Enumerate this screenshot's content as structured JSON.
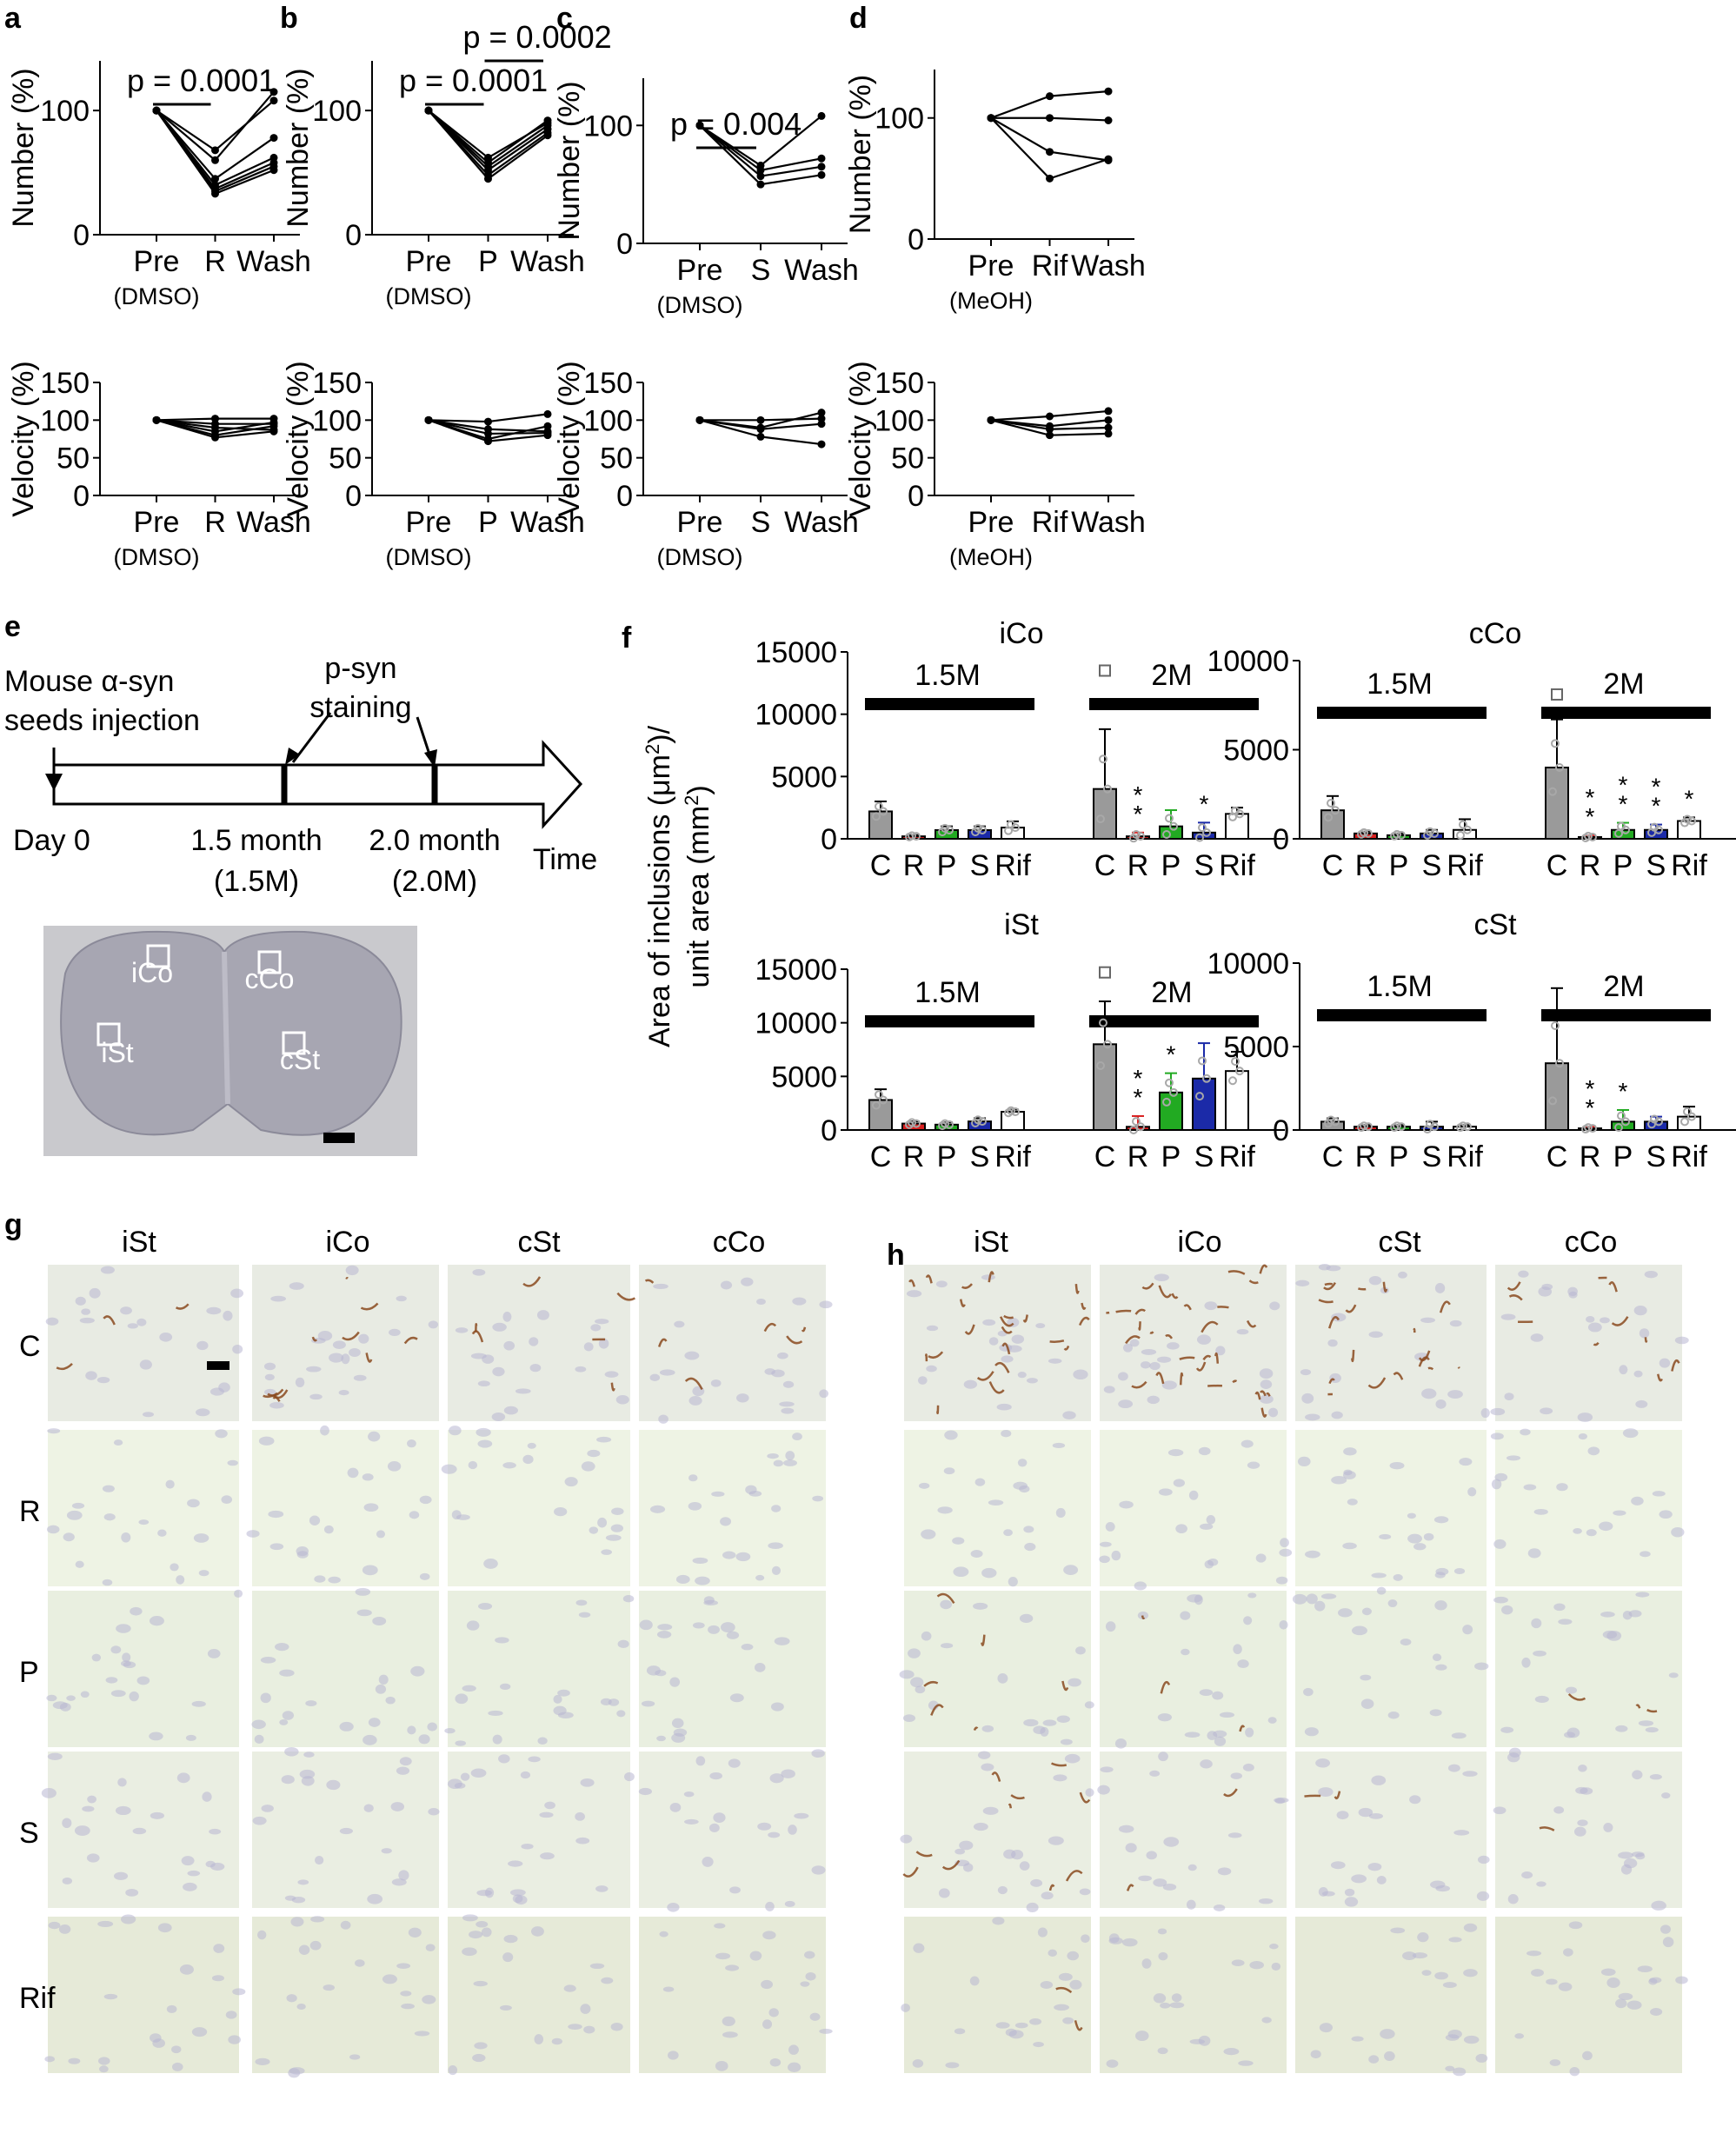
{
  "panel_letters": [
    "a",
    "b",
    "c",
    "d",
    "e",
    "f",
    "g",
    "h"
  ],
  "colors": {
    "control_gray": "#9a9a9a",
    "rifampicin_white": "#ffffff",
    "resveratrol_red": "#d92020",
    "phenolic_green": "#22aa22",
    "s_blue": "#1b2aa8",
    "marker_gray": "#a8a8a8",
    "brain_section": "#a7a6b2",
    "tissue_background": "#eef2e6",
    "stain_brown": "#8a4a1e",
    "nucleus_purple": "#b8b6d2"
  },
  "chart_data": [
    {
      "panel": "a",
      "type": "line",
      "ylabel": "Number (%)",
      "ylim": [
        0,
        140
      ],
      "yticks": [
        0,
        100
      ],
      "x_labels": [
        "Pre",
        "R",
        "Wash"
      ],
      "x_sublabel": "(DMSO)",
      "annotations": [
        {
          "text": "p = 0.0001",
          "from": "Pre",
          "to": "R"
        }
      ],
      "series": [
        {
          "values": [
            100,
            68,
            108
          ]
        },
        {
          "values": [
            100,
            60,
            115
          ]
        },
        {
          "values": [
            100,
            45,
            78
          ]
        },
        {
          "values": [
            100,
            40,
            62
          ]
        },
        {
          "values": [
            100,
            37,
            58
          ]
        },
        {
          "values": [
            100,
            35,
            55
          ]
        },
        {
          "values": [
            100,
            33,
            52
          ]
        }
      ]
    },
    {
      "panel": "a",
      "type": "line",
      "ylabel": "Velocity (%)",
      "ylim": [
        0,
        150
      ],
      "yticks": [
        0,
        50,
        100,
        150
      ],
      "x_labels": [
        "Pre",
        "R",
        "Wash"
      ],
      "x_sublabel": "(DMSO)",
      "series": [
        {
          "values": [
            100,
            102,
            102
          ]
        },
        {
          "values": [
            100,
            95,
            95
          ]
        },
        {
          "values": [
            100,
            90,
            87
          ]
        },
        {
          "values": [
            100,
            85,
            97
          ]
        },
        {
          "values": [
            100,
            80,
            92
          ]
        },
        {
          "values": [
            100,
            77,
            85
          ]
        }
      ]
    },
    {
      "panel": "b",
      "type": "line",
      "ylabel": "Number (%)",
      "ylim": [
        0,
        140
      ],
      "yticks": [
        0,
        100
      ],
      "x_labels": [
        "Pre",
        "P",
        "Wash"
      ],
      "x_sublabel": "(DMSO)",
      "annotations": [
        {
          "text": "p = 0.0001",
          "from": "Pre",
          "to": "P"
        },
        {
          "text": "p = 0.0002",
          "from": "P",
          "to": "Wash"
        }
      ],
      "series": [
        {
          "values": [
            100,
            62,
            90
          ]
        },
        {
          "values": [
            100,
            58,
            92
          ]
        },
        {
          "values": [
            100,
            55,
            88
          ]
        },
        {
          "values": [
            100,
            52,
            85
          ]
        },
        {
          "values": [
            100,
            48,
            82
          ]
        },
        {
          "values": [
            100,
            45,
            80
          ]
        }
      ]
    },
    {
      "panel": "b",
      "type": "line",
      "ylabel": "Velocity (%)",
      "ylim": [
        0,
        150
      ],
      "yticks": [
        0,
        50,
        100,
        150
      ],
      "x_labels": [
        "Pre",
        "P",
        "Wash"
      ],
      "x_sublabel": "(DMSO)",
      "series": [
        {
          "values": [
            100,
            98,
            108
          ]
        },
        {
          "values": [
            100,
            88,
            85
          ]
        },
        {
          "values": [
            100,
            82,
            83
          ]
        },
        {
          "values": [
            100,
            75,
            92
          ]
        },
        {
          "values": [
            100,
            72,
            80
          ]
        }
      ]
    },
    {
      "panel": "c",
      "type": "line",
      "ylabel": "Number (%)",
      "ylim": [
        0,
        140
      ],
      "yticks": [
        0,
        100
      ],
      "x_labels": [
        "Pre",
        "S",
        "Wash"
      ],
      "x_sublabel": "(DMSO)",
      "annotations": [
        {
          "text": "p = 0.004",
          "from": "Pre",
          "to": "S"
        }
      ],
      "series": [
        {
          "values": [
            100,
            66,
            108
          ]
        },
        {
          "values": [
            100,
            62,
            72
          ]
        },
        {
          "values": [
            100,
            57,
            65
          ]
        },
        {
          "values": [
            100,
            50,
            58
          ]
        }
      ]
    },
    {
      "panel": "c",
      "type": "line",
      "ylabel": "Velocity (%)",
      "ylim": [
        0,
        150
      ],
      "yticks": [
        0,
        50,
        100,
        150
      ],
      "x_labels": [
        "Pre",
        "S",
        "Wash"
      ],
      "x_sublabel": "(DMSO)",
      "series": [
        {
          "values": [
            100,
            100,
            102
          ]
        },
        {
          "values": [
            100,
            90,
            110
          ]
        },
        {
          "values": [
            100,
            88,
            95
          ]
        },
        {
          "values": [
            100,
            78,
            68
          ]
        }
      ]
    },
    {
      "panel": "d",
      "type": "line",
      "ylabel": "Number (%)",
      "ylim": [
        0,
        140
      ],
      "yticks": [
        0,
        100
      ],
      "x_labels": [
        "Pre",
        "Rif",
        "Wash"
      ],
      "x_sublabel": "(MeOH)",
      "series": [
        {
          "values": [
            100,
            118,
            122
          ]
        },
        {
          "values": [
            100,
            100,
            98
          ]
        },
        {
          "values": [
            100,
            72,
            65
          ]
        },
        {
          "values": [
            100,
            50,
            66
          ]
        }
      ]
    },
    {
      "panel": "d",
      "type": "line",
      "ylabel": "Velocity (%)",
      "ylim": [
        0,
        150
      ],
      "yticks": [
        0,
        50,
        100,
        150
      ],
      "x_labels": [
        "Pre",
        "Rif",
        "Wash"
      ],
      "x_sublabel": "(MeOH)",
      "series": [
        {
          "values": [
            100,
            105,
            112
          ]
        },
        {
          "values": [
            100,
            92,
            100
          ]
        },
        {
          "values": [
            100,
            88,
            90
          ]
        },
        {
          "values": [
            100,
            80,
            82
          ]
        }
      ]
    },
    {
      "panel": "f",
      "type": "bar",
      "region": "iCo",
      "ylim": [
        0,
        15000
      ],
      "yticks": [
        0,
        5000,
        10000,
        15000
      ],
      "group_labels": [
        "1.5M",
        "2M"
      ],
      "categories": [
        "C",
        "R",
        "P",
        "S",
        "Rif"
      ],
      "groups": [
        {
          "means": [
            2200,
            200,
            700,
            700,
            900
          ],
          "sd": [
            800,
            100,
            300,
            300,
            500
          ]
        },
        {
          "means": [
            4000,
            200,
            1000,
            500,
            2000
          ],
          "sd": [
            4800,
            300,
            1300,
            800,
            500
          ],
          "stars": [
            0,
            2,
            0,
            1,
            0
          ]
        }
      ],
      "outlier_marks": [
        {
          "group": 1,
          "bar": 0,
          "value": 13500
        }
      ]
    },
    {
      "panel": "f",
      "type": "bar",
      "region": "cCo",
      "ylim": [
        0,
        10000
      ],
      "yticks": [
        0,
        5000,
        10000
      ],
      "group_labels": [
        "1.5M",
        "2M"
      ],
      "categories_15M": [
        "C",
        "R",
        "P",
        "S",
        "Rif"
      ],
      "categories_2M": [
        "C",
        "R",
        "P",
        "S",
        "Rif"
      ],
      "groups": [
        {
          "means": [
            1600,
            300,
            200,
            300,
            500
          ],
          "sd": [
            800,
            100,
            100,
            200,
            600
          ]
        },
        {
          "means": [
            4000,
            100,
            500,
            500,
            1000
          ],
          "sd": [
            2700,
            100,
            400,
            300,
            200
          ],
          "stars": [
            0,
            2,
            2,
            2,
            1
          ]
        }
      ],
      "outlier_marks": [
        {
          "group": 1,
          "bar": 0,
          "value": 8100
        }
      ]
    },
    {
      "panel": "f",
      "type": "bar",
      "region": "iSt",
      "ylim": [
        0,
        15000
      ],
      "yticks": [
        0,
        5000,
        10000,
        15000
      ],
      "group_labels": [
        "1.5M",
        "2M"
      ],
      "categories": [
        "C",
        "R",
        "P",
        "S",
        "Rif"
      ],
      "groups": [
        {
          "means": [
            2800,
            600,
            500,
            800,
            1700
          ],
          "sd": [
            1000,
            200,
            200,
            300,
            200
          ]
        },
        {
          "means": [
            8000,
            300,
            3500,
            4800,
            5500
          ],
          "sd": [
            4000,
            1000,
            1800,
            3300,
            1800
          ],
          "stars": [
            0,
            2,
            1,
            0,
            0
          ]
        }
      ],
      "outlier_marks": [
        {
          "group": 1,
          "bar": 0,
          "value": 14700
        }
      ]
    },
    {
      "panel": "f",
      "type": "bar",
      "region": "cSt",
      "ylim": [
        0,
        10000
      ],
      "yticks": [
        0,
        5000,
        10000
      ],
      "group_labels": [
        "1.5M",
        "2M"
      ],
      "categories": [
        "C",
        "R",
        "P",
        "S",
        "Rif"
      ],
      "groups": [
        {
          "means": [
            500,
            200,
            200,
            200,
            200
          ],
          "sd": [
            200,
            100,
            100,
            300,
            100
          ]
        },
        {
          "means": [
            4000,
            100,
            500,
            500,
            800
          ],
          "sd": [
            4500,
            100,
            700,
            300,
            600
          ],
          "stars": [
            0,
            2,
            1,
            0,
            0
          ]
        }
      ]
    }
  ],
  "f_ylabel": [
    "Area of inclusions (μm",
    ")/",
    "unit area (mm",
    ")"
  ],
  "timeline": {
    "title_line1": "Mouse α-syn",
    "title_line2": "seeds injection",
    "stain_line1": "p-syn",
    "stain_line2": "staining",
    "day0": "Day 0",
    "m15_line1": "1.5 month",
    "m15_line2": "(1.5M)",
    "m20_line1": "2.0 month",
    "m20_line2": "(2.0M)",
    "time": "Time"
  },
  "brain_rois": [
    "iCo",
    "cCo",
    "iSt",
    "cSt"
  ],
  "micrographs": {
    "columns_g": [
      "iSt",
      "iCo",
      "cSt",
      "cCo"
    ],
    "columns_h": [
      "iSt",
      "iCo",
      "cSt",
      "cCo"
    ],
    "rows": [
      "C",
      "R",
      "P",
      "S",
      "Rif"
    ]
  }
}
